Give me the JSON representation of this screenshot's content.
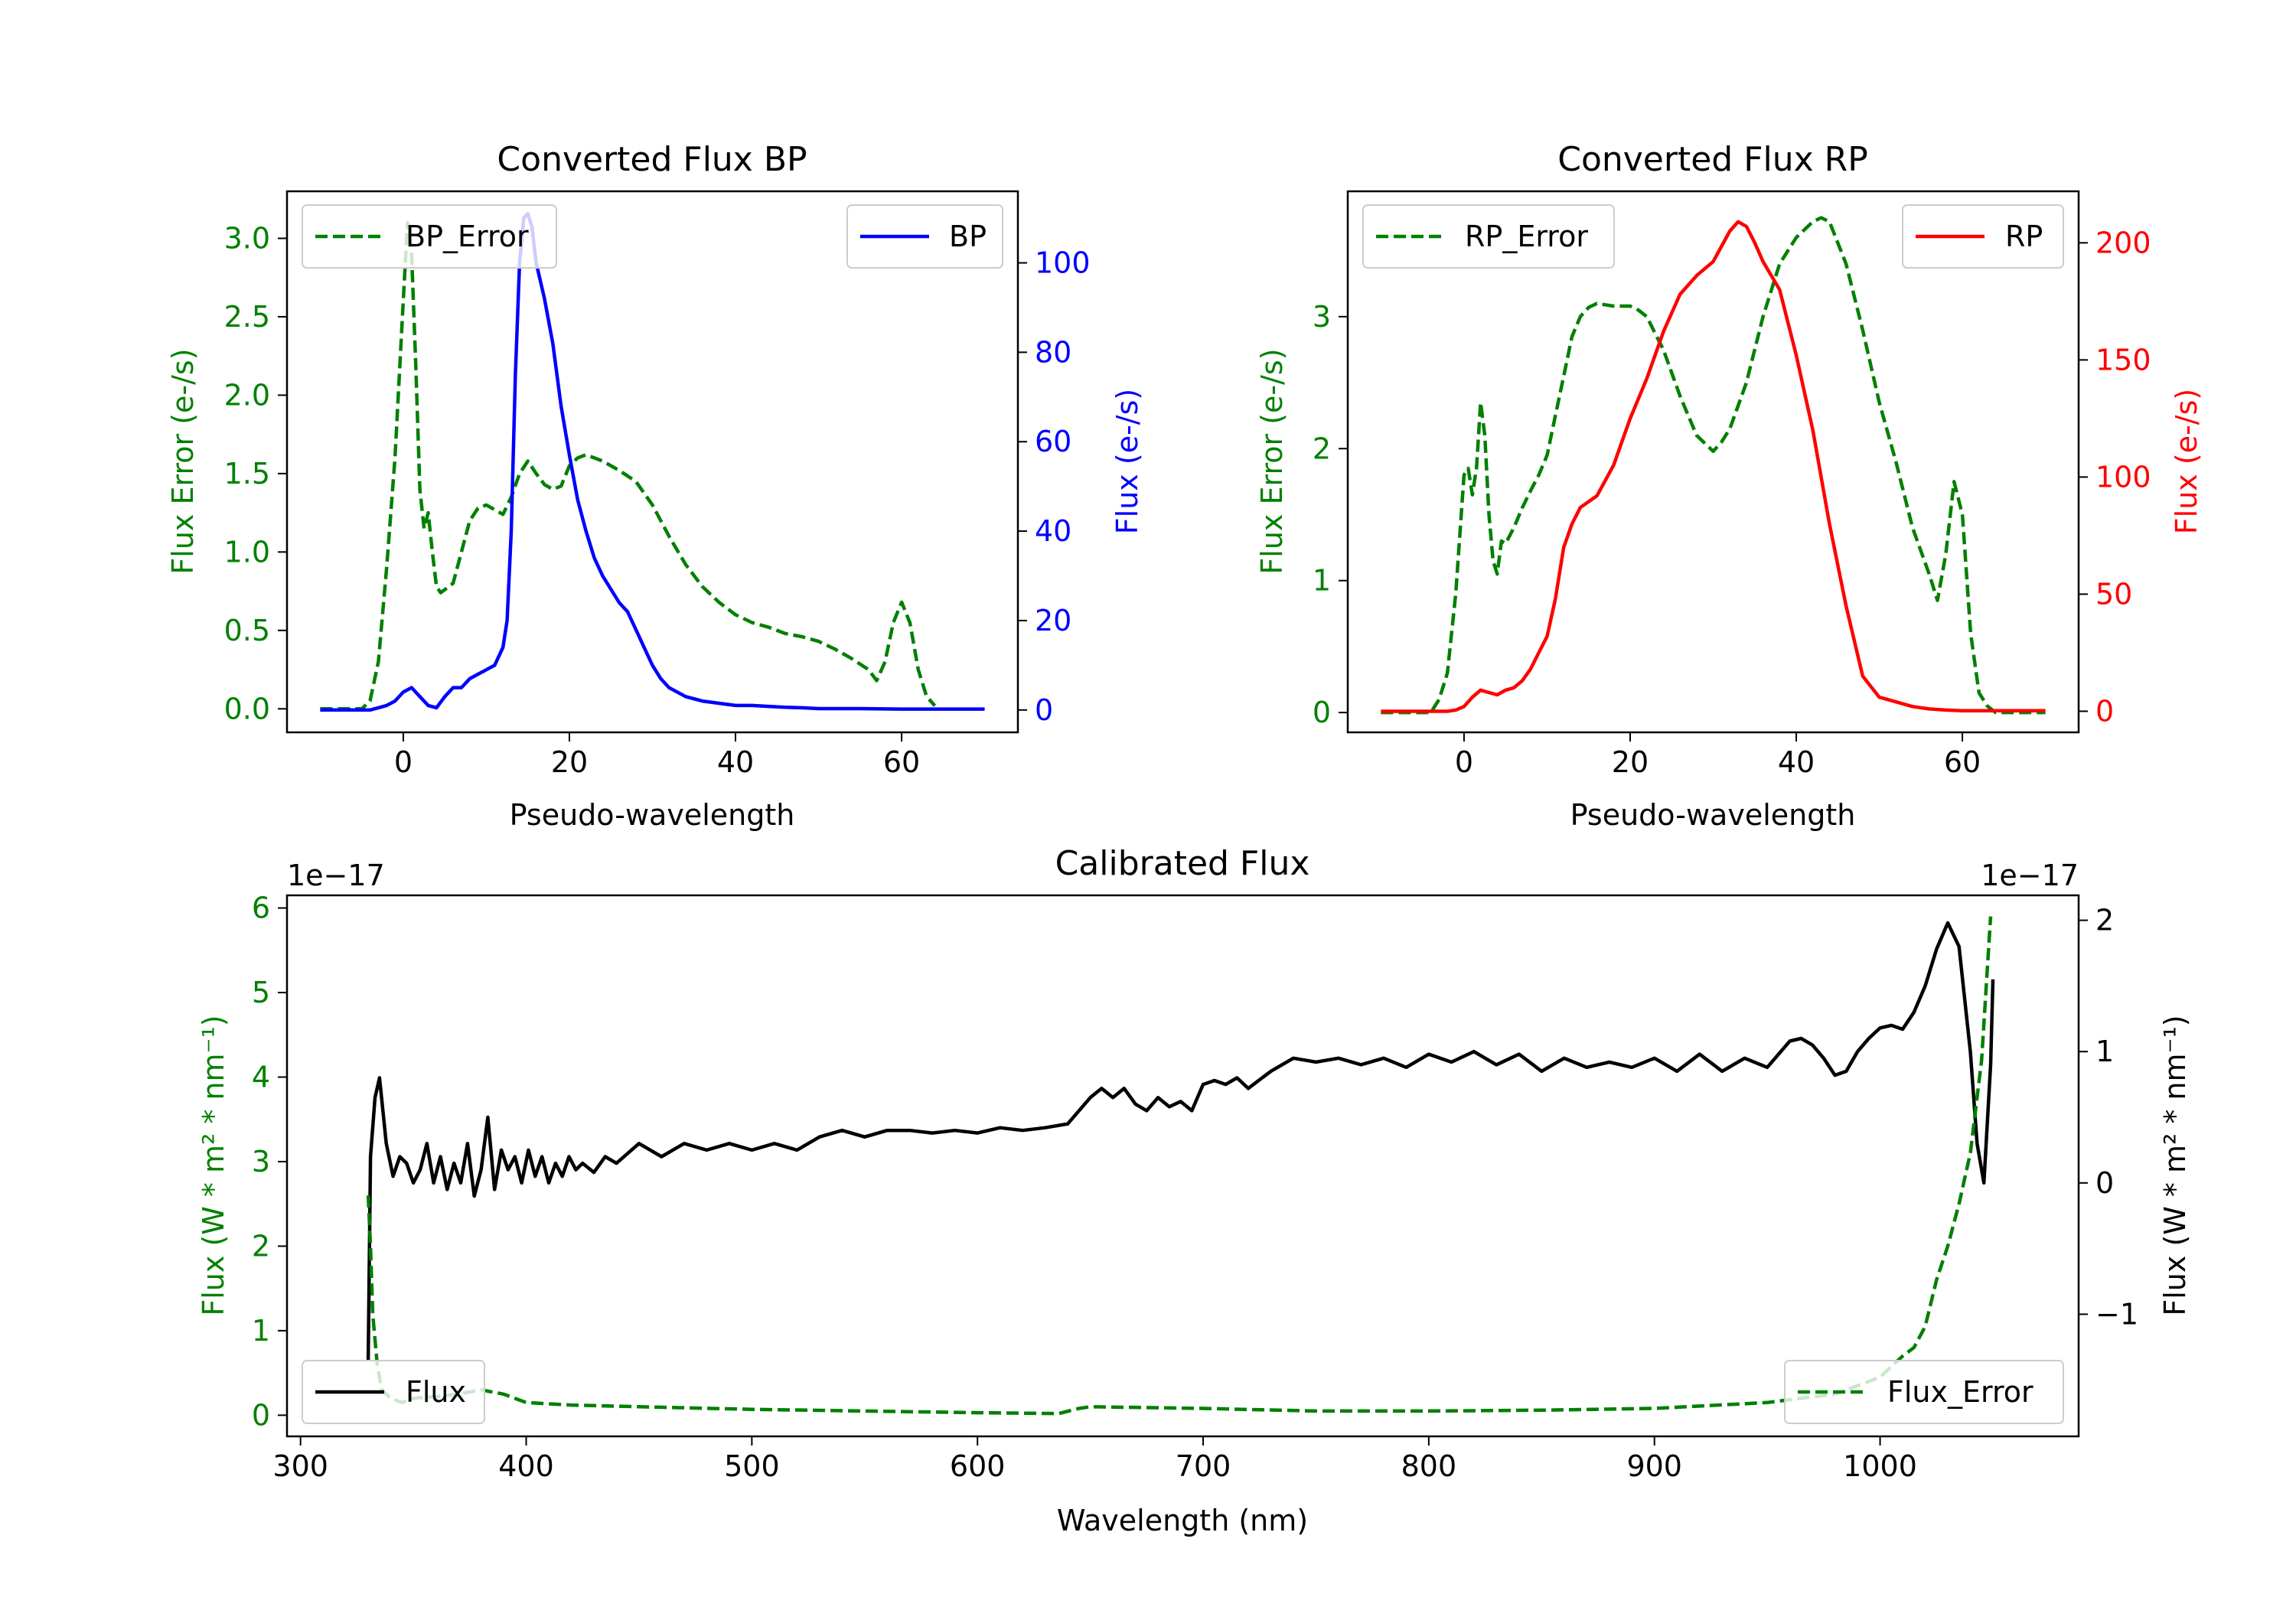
{
  "chart_data": [
    {
      "id": "bp",
      "type": "line",
      "title": "Converted Flux BP",
      "xlabel": "Pseudo-wavelength",
      "ylabel_left": "Flux Error (e-/s)",
      "ylabel_right": "Flux (e-/s)",
      "xlim": [
        -14,
        74
      ],
      "ylim_left": [
        -0.15,
        3.3
      ],
      "ylim_right": [
        -5,
        116
      ],
      "xticks": [
        0,
        20,
        40,
        60
      ],
      "xtick_labels": [
        "0",
        "20",
        "40",
        "60"
      ],
      "yticks_left": [
        0,
        0.5,
        1,
        1.5,
        2,
        2.5,
        3
      ],
      "ytick_labels_left": [
        "0.0",
        "0.5",
        "1.0",
        "1.5",
        "2.0",
        "2.5",
        "3.0"
      ],
      "yticks_right": [
        0,
        20,
        40,
        60,
        80,
        100
      ],
      "ytick_labels_right": [
        "0",
        "20",
        "40",
        "60",
        "80",
        "100"
      ],
      "left_axis_color": "#008000",
      "right_axis_color": "#0000ff",
      "legend_left": "upper left",
      "legend_right": "upper right",
      "series": [
        {
          "name": "BP_Error",
          "axis": "left",
          "color": "#008000",
          "dash": true,
          "x": [
            -10,
            -5,
            -4,
            -3,
            -2,
            -1,
            0,
            0.5,
            1,
            1.5,
            2,
            2.5,
            3,
            3.5,
            4,
            4.5,
            5,
            6,
            7,
            8,
            9,
            10,
            11,
            12,
            13,
            14,
            15,
            16,
            17,
            18,
            19,
            20,
            21,
            22,
            24,
            26,
            28,
            30,
            32,
            34,
            36,
            38,
            40,
            42,
            44,
            46,
            48,
            50,
            52,
            54,
            56,
            57,
            58,
            59,
            60,
            61,
            62,
            63,
            64
          ],
          "y": [
            0,
            0,
            0.05,
            0.3,
            0.9,
            1.6,
            2.6,
            3.1,
            2.9,
            2.2,
            1.4,
            1.15,
            1.25,
            1.0,
            0.78,
            0.74,
            0.76,
            0.8,
            1.0,
            1.2,
            1.28,
            1.3,
            1.27,
            1.24,
            1.35,
            1.5,
            1.58,
            1.5,
            1.43,
            1.4,
            1.42,
            1.55,
            1.6,
            1.62,
            1.58,
            1.52,
            1.45,
            1.3,
            1.1,
            0.92,
            0.78,
            0.68,
            0.6,
            0.55,
            0.52,
            0.48,
            0.46,
            0.43,
            0.38,
            0.32,
            0.25,
            0.18,
            0.3,
            0.55,
            0.68,
            0.55,
            0.25,
            0.08,
            0.02
          ]
        },
        {
          "name": "BP",
          "axis": "right",
          "color": "#0000ff",
          "dash": false,
          "x": [
            -10,
            -4,
            -3,
            -2,
            -1,
            0,
            1,
            2,
            3,
            4,
            5,
            6,
            7,
            8,
            9,
            10,
            11,
            12,
            12.5,
            13,
            13.5,
            14,
            14.5,
            15,
            15.5,
            16,
            17,
            18,
            19,
            20,
            21,
            22,
            23,
            24,
            25,
            26,
            27,
            28,
            29,
            30,
            31,
            32,
            34,
            36,
            38,
            40,
            42,
            44,
            46,
            48,
            50,
            55,
            60,
            65,
            70
          ],
          "y": [
            0,
            0,
            0.5,
            1,
            2,
            4,
            5,
            3,
            1,
            0.5,
            3,
            5,
            5,
            7,
            8,
            9,
            10,
            14,
            20,
            40,
            75,
            100,
            110,
            111,
            108,
            100,
            92,
            82,
            68,
            57,
            47,
            40,
            34,
            30,
            27,
            24,
            22,
            18,
            14,
            10,
            7,
            5,
            3,
            2,
            1.5,
            1,
            1,
            0.8,
            0.6,
            0.5,
            0.3,
            0.3,
            0.2,
            0.2,
            0.2
          ]
        }
      ]
    },
    {
      "id": "rp",
      "type": "line",
      "title": "Converted Flux RP",
      "xlabel": "Pseudo-wavelength",
      "ylabel_left": "Flux Error (e-/s)",
      "ylabel_right": "Flux (e-/s)",
      "xlim": [
        -14,
        74
      ],
      "ylim_left": [
        -0.15,
        3.95
      ],
      "ylim_right": [
        -9,
        222
      ],
      "xticks": [
        0,
        20,
        40,
        60
      ],
      "xtick_labels": [
        "0",
        "20",
        "40",
        "60"
      ],
      "yticks_left": [
        0,
        1,
        2,
        3
      ],
      "ytick_labels_left": [
        "0",
        "1",
        "2",
        "3"
      ],
      "yticks_right": [
        0,
        50,
        100,
        150,
        200
      ],
      "ytick_labels_right": [
        "0",
        "50",
        "100",
        "150",
        "200"
      ],
      "left_axis_color": "#008000",
      "right_axis_color": "#ff0000",
      "legend_left": "upper left",
      "legend_right": "upper right",
      "series": [
        {
          "name": "RP_Error",
          "axis": "left",
          "color": "#008000",
          "dash": true,
          "x": [
            -10,
            -4,
            -3,
            -2,
            -1,
            0,
            0.5,
            1,
            1.5,
            2,
            2.5,
            3,
            3.5,
            4,
            4.5,
            5,
            6,
            7,
            8,
            9,
            10,
            11,
            12,
            13,
            14,
            15,
            16,
            18,
            20,
            21,
            22,
            24,
            26,
            28,
            30,
            31,
            32,
            34,
            36,
            38,
            40,
            42,
            43,
            44,
            46,
            48,
            50,
            52,
            54,
            56,
            57,
            58,
            59,
            60,
            61,
            62,
            63,
            64,
            70
          ],
          "y": [
            0,
            0,
            0.1,
            0.3,
            0.9,
            1.8,
            1.85,
            1.65,
            1.85,
            2.35,
            2.1,
            1.5,
            1.15,
            1.05,
            1.3,
            1.28,
            1.4,
            1.55,
            1.68,
            1.8,
            1.95,
            2.25,
            2.55,
            2.85,
            3.0,
            3.07,
            3.1,
            3.08,
            3.08,
            3.05,
            3.0,
            2.75,
            2.4,
            2.1,
            1.98,
            2.05,
            2.15,
            2.5,
            3.0,
            3.4,
            3.6,
            3.72,
            3.75,
            3.72,
            3.4,
            2.9,
            2.35,
            1.9,
            1.4,
            1.05,
            0.85,
            1.2,
            1.75,
            1.5,
            0.6,
            0.15,
            0.05,
            0,
            0
          ]
        },
        {
          "name": "RP",
          "axis": "right",
          "color": "#ff0000",
          "dash": false,
          "x": [
            -10,
            -2,
            -1,
            0,
            1,
            2,
            3,
            4,
            5,
            6,
            7,
            8,
            9,
            10,
            11,
            12,
            13,
            14,
            16,
            18,
            20,
            22,
            24,
            26,
            28,
            30,
            32,
            33,
            34,
            35,
            36,
            38,
            40,
            42,
            44,
            46,
            48,
            50,
            52,
            54,
            56,
            58,
            60,
            65,
            70
          ],
          "y": [
            0,
            0,
            0.5,
            2,
            6,
            9,
            8,
            7,
            9,
            10,
            13,
            18,
            25,
            32,
            48,
            70,
            80,
            87,
            92,
            105,
            125,
            142,
            162,
            178,
            186,
            192,
            205,
            209,
            207,
            200,
            192,
            180,
            152,
            120,
            80,
            45,
            15,
            6,
            4,
            2,
            1,
            0.5,
            0.2,
            0.2,
            0.2
          ]
        }
      ]
    },
    {
      "id": "cal",
      "type": "line",
      "title": "Calibrated Flux",
      "xlabel": "Wavelength (nm)",
      "ylabel_left": "Flux (W * m² * nm⁻¹)",
      "ylabel_right": "Flux (W * m² * nm⁻¹)",
      "offset_left": "1e−17",
      "offset_right": "1e−17",
      "xlim": [
        294,
        1088
      ],
      "ylim_left": [
        -0.25,
        6.15
      ],
      "ylim_right": [
        -1.93,
        2.19
      ],
      "xticks": [
        300,
        400,
        500,
        600,
        700,
        800,
        900,
        1000
      ],
      "xtick_labels": [
        "300",
        "400",
        "500",
        "600",
        "700",
        "800",
        "900",
        "1000"
      ],
      "yticks_left": [
        0,
        1,
        2,
        3,
        4,
        5,
        6
      ],
      "ytick_labels_left": [
        "0",
        "1",
        "2",
        "3",
        "4",
        "5",
        "6"
      ],
      "yticks_right": [
        -1,
        0,
        1,
        2
      ],
      "ytick_labels_right": [
        "−1",
        "0",
        "1",
        "2"
      ],
      "left_axis_color": "#008000",
      "right_axis_color": "#000000",
      "legend_left": "lower left",
      "legend_right": "lower right",
      "series": [
        {
          "name": "Flux",
          "axis": "right",
          "color": "#000000",
          "dash": false,
          "x": [
            330,
            331,
            333,
            335,
            338,
            341,
            344,
            347,
            350,
            353,
            356,
            359,
            362,
            365,
            368,
            371,
            374,
            377,
            380,
            383,
            386,
            389,
            392,
            395,
            398,
            401,
            404,
            407,
            410,
            413,
            416,
            419,
            422,
            425,
            430,
            435,
            440,
            450,
            460,
            470,
            480,
            490,
            500,
            510,
            520,
            530,
            540,
            550,
            560,
            570,
            580,
            590,
            600,
            610,
            620,
            630,
            640,
            650,
            655,
            660,
            665,
            670,
            675,
            680,
            685,
            690,
            695,
            700,
            705,
            710,
            715,
            720,
            730,
            740,
            750,
            760,
            770,
            780,
            790,
            800,
            810,
            820,
            830,
            840,
            850,
            860,
            870,
            880,
            890,
            900,
            910,
            920,
            930,
            940,
            950,
            960,
            965,
            970,
            975,
            980,
            985,
            990,
            995,
            1000,
            1005,
            1010,
            1015,
            1020,
            1025,
            1030,
            1035,
            1040,
            1043,
            1046,
            1049,
            1050
          ],
          "y": [
            -1.35,
            0.2,
            0.65,
            0.8,
            0.3,
            0.05,
            0.2,
            0.15,
            0,
            0.1,
            0.3,
            0.0,
            0.2,
            -0.05,
            0.15,
            0.0,
            0.3,
            -0.1,
            0.1,
            0.5,
            -0.05,
            0.25,
            0.1,
            0.2,
            0.0,
            0.25,
            0.05,
            0.2,
            0.0,
            0.15,
            0.05,
            0.2,
            0.1,
            0.15,
            0.08,
            0.2,
            0.15,
            0.3,
            0.2,
            0.3,
            0.25,
            0.3,
            0.25,
            0.3,
            0.25,
            0.35,
            0.4,
            0.35,
            0.4,
            0.4,
            0.38,
            0.4,
            0.38,
            0.42,
            0.4,
            0.42,
            0.45,
            0.65,
            0.72,
            0.65,
            0.72,
            0.6,
            0.55,
            0.65,
            0.58,
            0.62,
            0.55,
            0.75,
            0.78,
            0.75,
            0.8,
            0.72,
            0.85,
            0.95,
            0.92,
            0.95,
            0.9,
            0.95,
            0.88,
            0.98,
            0.92,
            1.0,
            0.9,
            0.98,
            0.85,
            0.95,
            0.88,
            0.92,
            0.88,
            0.95,
            0.85,
            0.98,
            0.85,
            0.95,
            0.88,
            1.08,
            1.1,
            1.05,
            0.95,
            0.82,
            0.85,
            1.0,
            1.1,
            1.18,
            1.2,
            1.17,
            1.3,
            1.5,
            1.78,
            1.98,
            1.8,
            1.0,
            0.3,
            0.0,
            0.9,
            1.55
          ]
        },
        {
          "name": "Flux_Error",
          "axis": "left",
          "color": "#008000",
          "dash": true,
          "x": [
            330,
            331,
            332,
            334,
            336,
            340,
            345,
            350,
            360,
            370,
            380,
            390,
            400,
            420,
            450,
            500,
            550,
            600,
            636,
            645,
            650,
            700,
            750,
            800,
            850,
            900,
            950,
            980,
            1000,
            1010,
            1015,
            1020,
            1025,
            1030,
            1035,
            1040,
            1045,
            1049
          ],
          "y": [
            2.6,
            2.0,
            1.2,
            0.6,
            0.3,
            0.2,
            0.15,
            0.2,
            0.22,
            0.25,
            0.3,
            0.25,
            0.15,
            0.12,
            0.1,
            0.07,
            0.05,
            0.03,
            0.02,
            0.08,
            0.1,
            0.08,
            0.05,
            0.05,
            0.06,
            0.08,
            0.15,
            0.25,
            0.45,
            0.7,
            0.8,
            1.05,
            1.6,
            2.0,
            2.5,
            3.1,
            4.2,
            5.9
          ]
        }
      ]
    }
  ]
}
